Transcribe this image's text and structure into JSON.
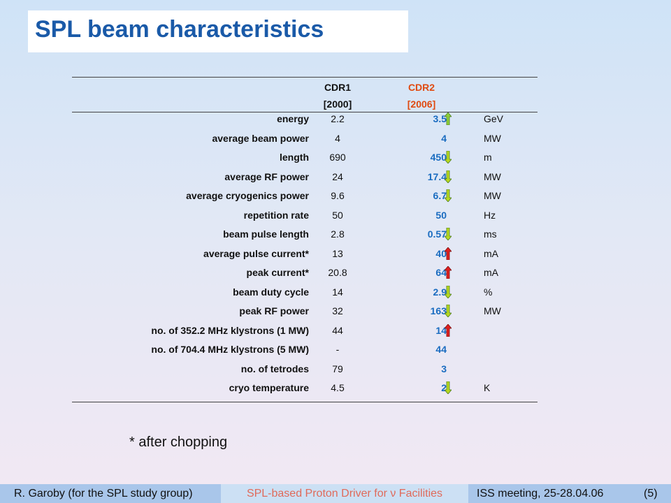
{
  "title": "SPL beam characteristics",
  "table": {
    "headers": {
      "cdr1_line1": "CDR1",
      "cdr1_line2": "[2000]",
      "cdr2_line1": "CDR2",
      "cdr2_line2": "[2006]"
    },
    "rows": [
      {
        "param": "energy",
        "cdr1": "2.2",
        "cdr2": "3.5",
        "unit": "GeV",
        "trend": "up-green"
      },
      {
        "param": "average beam power",
        "cdr1": "4",
        "cdr2": "4",
        "unit": "MW",
        "trend": "none"
      },
      {
        "param": "length",
        "cdr1": "690",
        "cdr2": "450",
        "unit": "m",
        "trend": "down-green"
      },
      {
        "param": "average RF power",
        "cdr1": "24",
        "cdr2": "17.4",
        "unit": "MW",
        "trend": "down-green"
      },
      {
        "param": "average cryogenics power",
        "cdr1": "9.6",
        "cdr2": "6.7",
        "unit": "MW",
        "trend": "down-green"
      },
      {
        "param": "repetition rate",
        "cdr1": "50",
        "cdr2": "50",
        "unit": "Hz",
        "trend": "none"
      },
      {
        "param": "beam pulse length",
        "cdr1": "2.8",
        "cdr2": "0.57",
        "unit": "ms",
        "trend": "down-green"
      },
      {
        "param": "average pulse current*",
        "cdr1": "13",
        "cdr2": "40",
        "unit": "mA",
        "trend": "up-red"
      },
      {
        "param": "peak current*",
        "cdr1": "20.8",
        "cdr2": "64",
        "unit": "mA",
        "trend": "up-red"
      },
      {
        "param": "beam duty cycle",
        "cdr1": "14",
        "cdr2": "2.9",
        "unit": "%",
        "trend": "down-green"
      },
      {
        "param": "peak RF power",
        "cdr1": "32",
        "cdr2": "163",
        "unit": "MW",
        "trend": "down-green"
      },
      {
        "param": "no. of 352.2 MHz klystrons (1 MW)",
        "cdr1": "44",
        "cdr2": "14",
        "unit": "",
        "trend": "up-red"
      },
      {
        "param": "no. of 704.4 MHz klystrons (5 MW)",
        "cdr1": "-",
        "cdr2": "44",
        "unit": "",
        "trend": "none"
      },
      {
        "param": "no. of tetrodes",
        "cdr1": "79",
        "cdr2": "3",
        "unit": "",
        "trend": "none"
      },
      {
        "param": "cryo temperature",
        "cdr1": "4.5",
        "cdr2": "2",
        "unit": "K",
        "trend": "down-green"
      }
    ]
  },
  "footnote": "* after chopping",
  "footer": {
    "author": "R. Garoby (for the SPL study group)",
    "talk": "SPL-based Proton Driver for ν Facilities",
    "meeting": "ISS meeting, 25-28.04.06",
    "page": "(5)"
  },
  "colors": {
    "title": "#1a5aa8",
    "cdr2_header": "#e04a10",
    "cdr2_values": "#1a6cc0",
    "arrow_up_green": "#8fd03a",
    "arrow_down_green": "#b8d820",
    "arrow_up_red": "#e02020"
  }
}
